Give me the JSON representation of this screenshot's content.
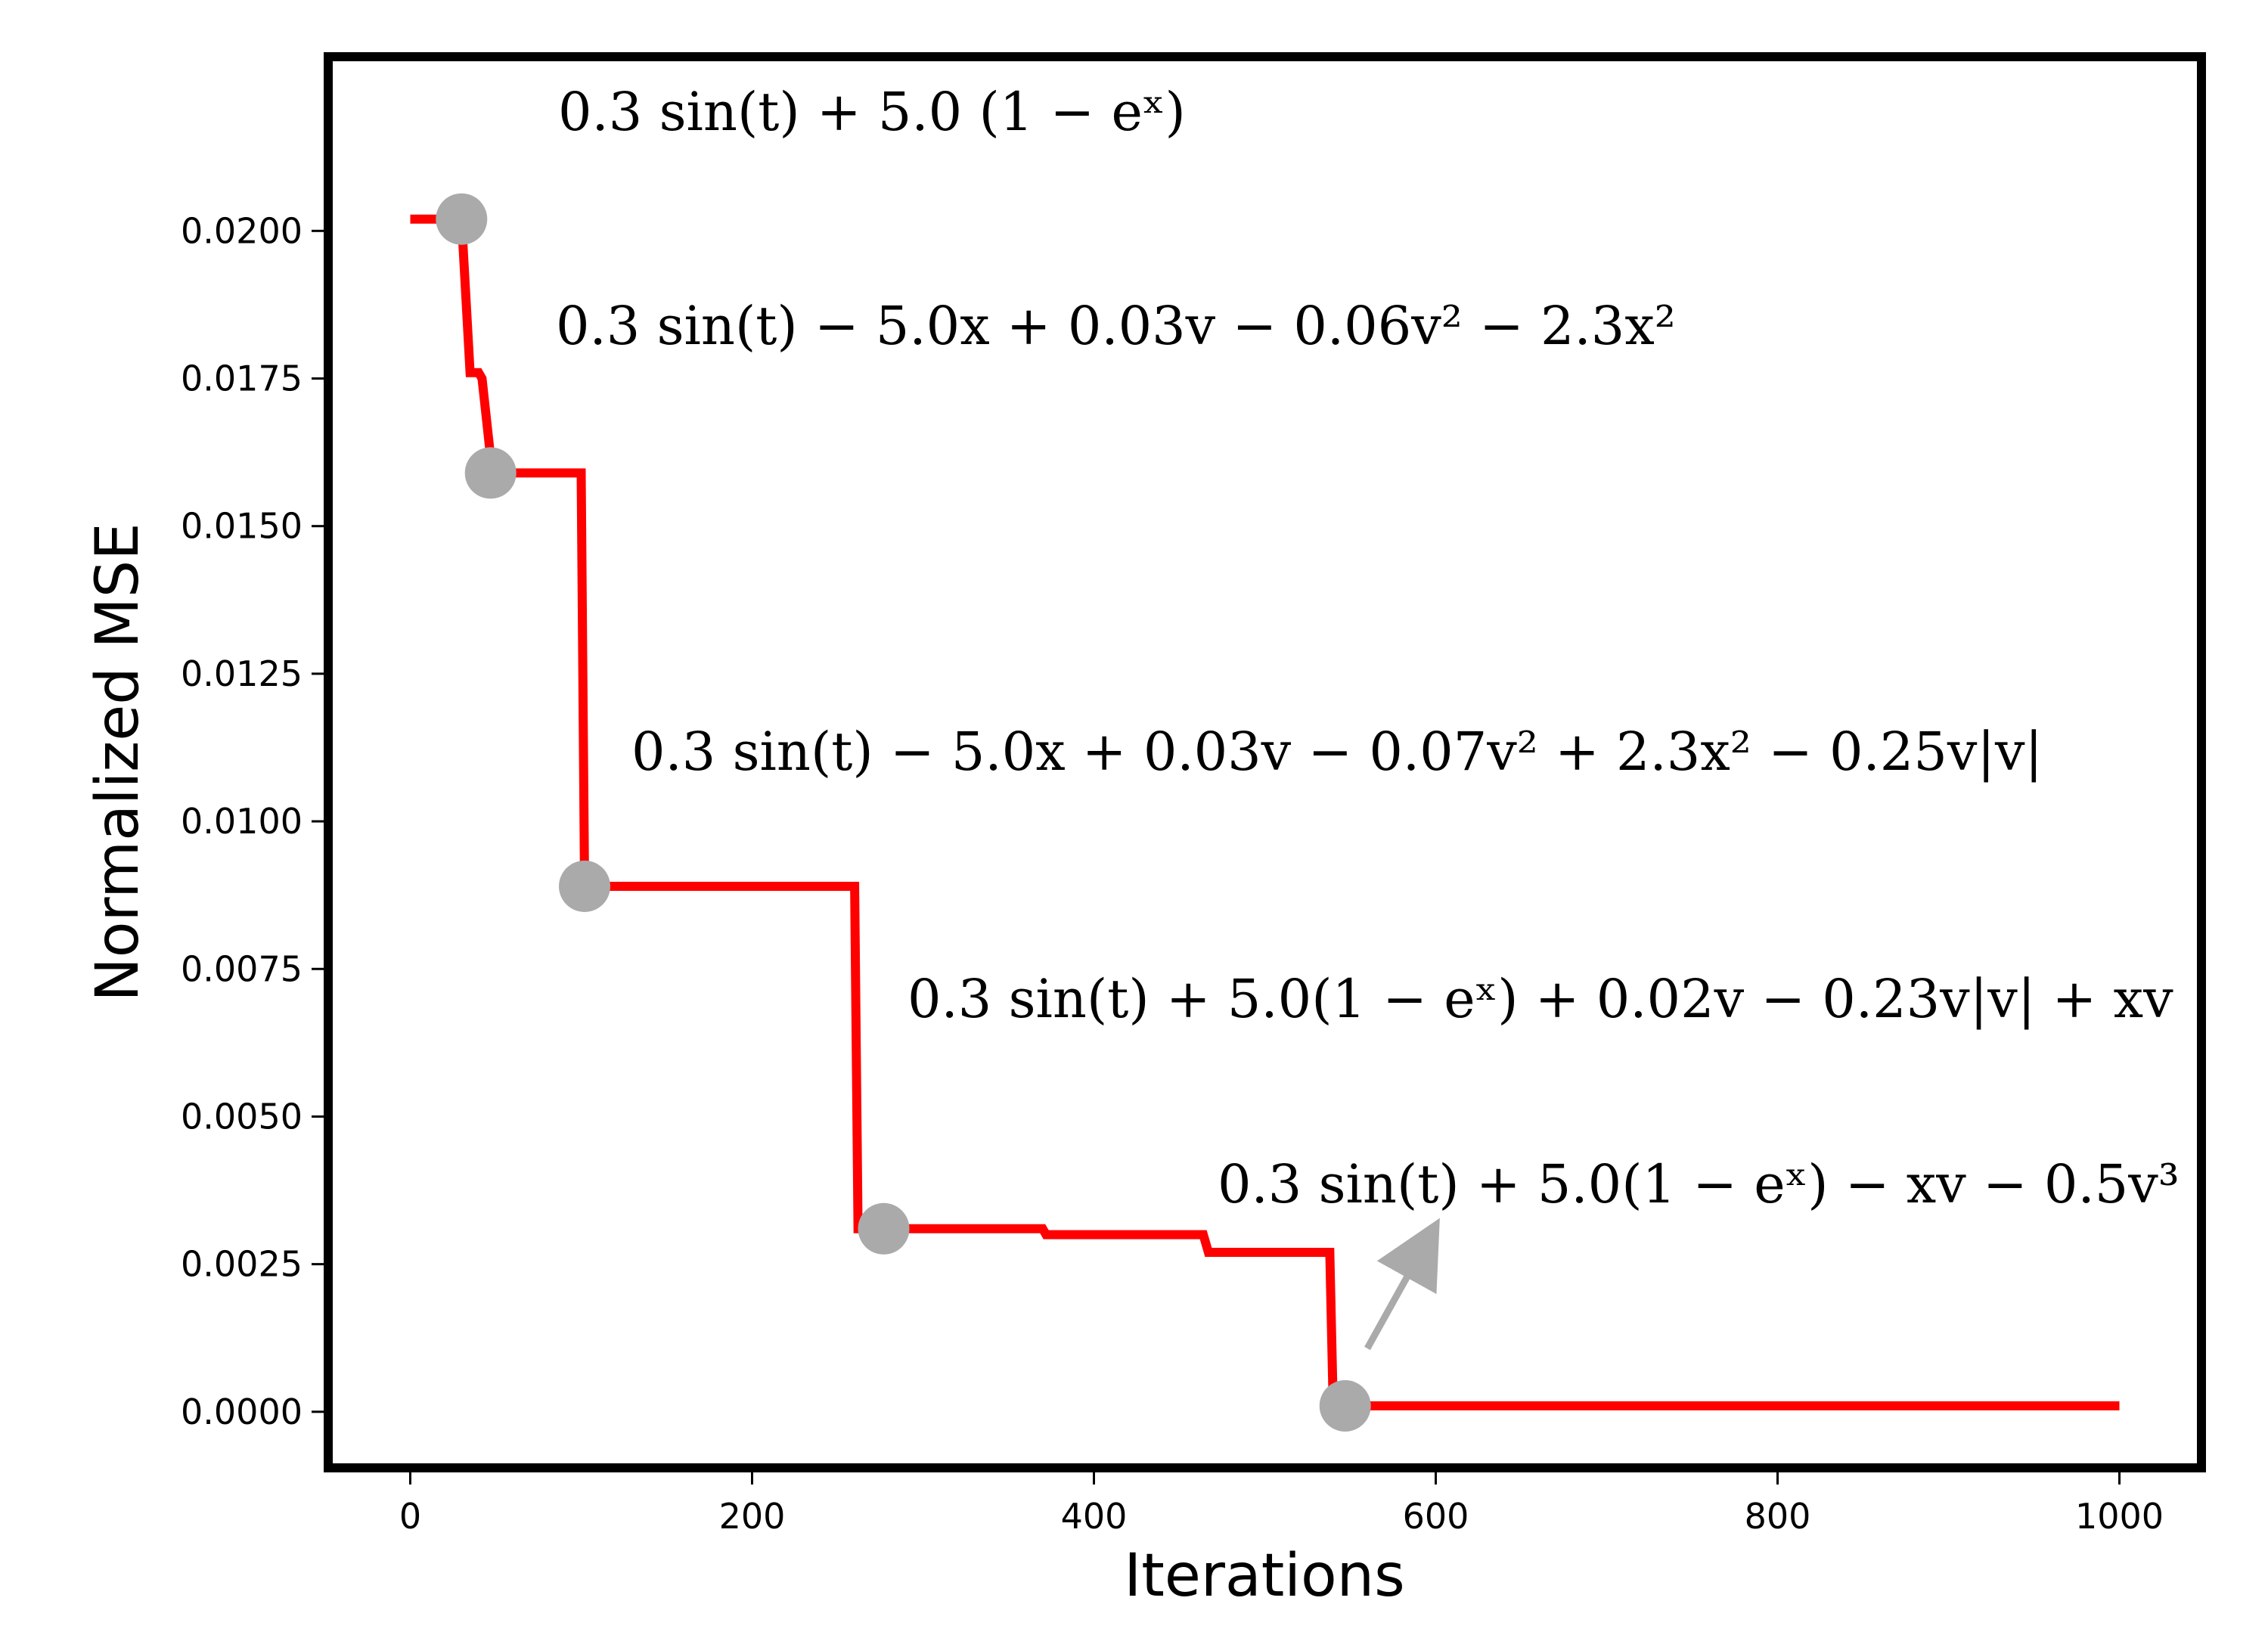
{
  "chart_data": {
    "type": "line",
    "title": "",
    "xlabel": "Iterations",
    "ylabel": "Normalized MSE",
    "xlim": [
      -48,
      1048
    ],
    "ylim": [
      -0.00095,
      0.02295
    ],
    "xticks": [
      0,
      200,
      400,
      600,
      800,
      1000
    ],
    "xtick_labels": [
      "0",
      "200",
      "400",
      "600",
      "800",
      "1000"
    ],
    "yticks": [
      0.0,
      0.0025,
      0.005,
      0.0075,
      0.01,
      0.0125,
      0.015,
      0.0175,
      0.02
    ],
    "ytick_labels": [
      "0.0000",
      "0.0025",
      "0.0050",
      "0.0075",
      "0.0100",
      "0.0125",
      "0.0150",
      "0.0175",
      "0.0200"
    ],
    "grid": false,
    "series": [
      {
        "color": "#ff0000",
        "x": [
          0,
          30,
          35,
          40,
          42,
          48,
          100,
          102,
          260,
          262,
          275,
          280,
          370,
          372,
          464,
          467,
          538,
          540,
          1000
        ],
        "y": [
          0.0202,
          0.0202,
          0.0176,
          0.0176,
          0.0175,
          0.0159,
          0.0159,
          0.0089,
          0.0089,
          0.0031,
          0.0031,
          0.0031,
          0.0031,
          0.003,
          0.003,
          0.0027,
          0.0027,
          0.0001,
          0.0001
        ]
      }
    ],
    "markers": [
      {
        "x": 30,
        "y": 0.0202,
        "color": "#aaaaaa",
        "label": "0.3 sin(t) + 5.0 (1 − eˣ)"
      },
      {
        "x": 47,
        "y": 0.0159,
        "color": "#aaaaaa",
        "label": "0.3 sin(t) − 5.0x + 0.03v − 0.06v² − 2.3x²"
      },
      {
        "x": 102,
        "y": 0.0089,
        "color": "#aaaaaa",
        "label": "0.3 sin(t) − 5.0x + 0.03v − 0.07v² + 2.3x² − 0.25v|v|"
      },
      {
        "x": 277,
        "y": 0.0031,
        "color": "#aaaaaa",
        "label": "0.3 sin(t) + 5.0(1 − eˣ) + 0.02v − 0.23v|v| + xv"
      },
      {
        "x": 547,
        "y": 0.0001,
        "color": "#aaaaaa",
        "label": "0.3 sin(t) + 5.0(1 − eˣ) − xv − 0.5v³"
      }
    ]
  }
}
